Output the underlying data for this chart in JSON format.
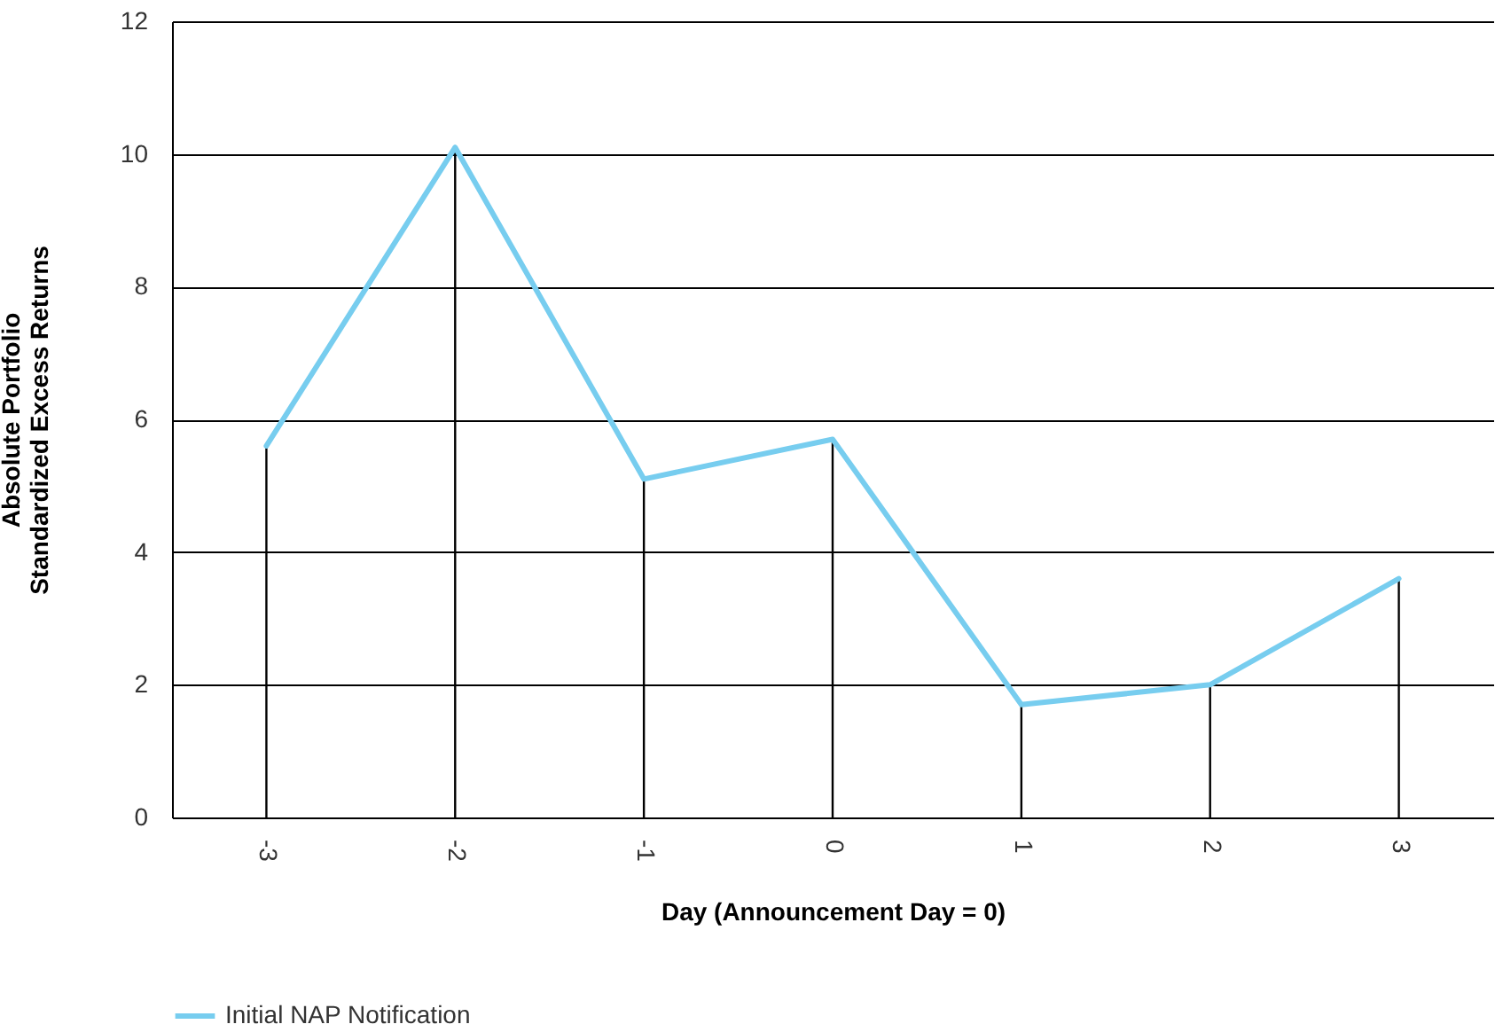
{
  "chart_data": {
    "type": "line",
    "xlabel": "Day (Announcement Day = 0)",
    "ylabel": "Absolute Portfolio Standardized Excess Returns",
    "categories": [
      "-3",
      "-2",
      "-1",
      "0",
      "1",
      "2",
      "3"
    ],
    "series": [
      {
        "type": "bar",
        "color": "#000000",
        "values": [
          5.6,
          10.1,
          5.1,
          5.7,
          1.7,
          2.0,
          3.6
        ]
      },
      {
        "name": "Initial NAP Notification",
        "color": "#77cdef",
        "values": [
          5.6,
          10.1,
          5.1,
          5.7,
          1.7,
          2.0,
          3.6
        ]
      }
    ],
    "ylim": [
      0,
      12
    ],
    "yticks": [
      0,
      2,
      4,
      6,
      8,
      10,
      12
    ],
    "grid": "y",
    "legend": "bottom left"
  }
}
